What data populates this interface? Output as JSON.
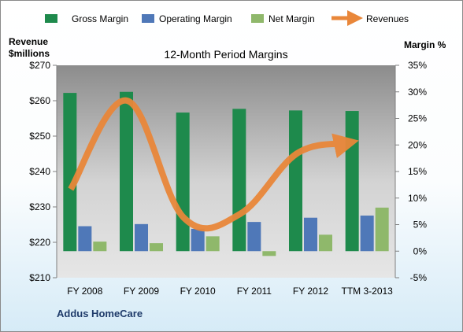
{
  "chart_data": {
    "type": "bar",
    "title": "12-Month Period Margins",
    "left_axis_label": [
      "Revenue",
      "$millions"
    ],
    "right_axis_label": "Margin %",
    "company": "Addus HomeCare",
    "categories": [
      "FY 2008",
      "FY 2009",
      "FY 2010",
      "FY 2011",
      "FY 2012",
      "TTM 3-2013"
    ],
    "left_axis": {
      "min": 210,
      "max": 270,
      "step": 10,
      "tick_labels": [
        "$210",
        "$220",
        "$230",
        "$240",
        "$250",
        "$260",
        "$270"
      ]
    },
    "right_axis": {
      "min": -5,
      "max": 35,
      "step": 5,
      "tick_labels": [
        "-5%",
        "0%",
        "5%",
        "10%",
        "15%",
        "20%",
        "25%",
        "30%",
        "35%"
      ]
    },
    "grid": false,
    "legend_position": "top",
    "series": [
      {
        "name": "Gross Margin",
        "axis": "right",
        "kind": "bar",
        "color": "#1e8a4c",
        "values": [
          29.8,
          30.0,
          26.1,
          26.8,
          26.5,
          26.4
        ]
      },
      {
        "name": "Operating Margin",
        "axis": "right",
        "kind": "bar",
        "color": "#4f78b8",
        "values": [
          4.7,
          5.1,
          4.2,
          5.5,
          6.3,
          6.7
        ]
      },
      {
        "name": "Net Margin",
        "axis": "right",
        "kind": "bar",
        "color": "#8fb86b",
        "values": [
          1.8,
          1.5,
          2.8,
          -0.9,
          3.1,
          8.2
        ]
      },
      {
        "name": "Revenues",
        "axis": "left",
        "kind": "line",
        "color": "#e9873a",
        "values": [
          235,
          260,
          227,
          228,
          245,
          248
        ]
      }
    ]
  }
}
